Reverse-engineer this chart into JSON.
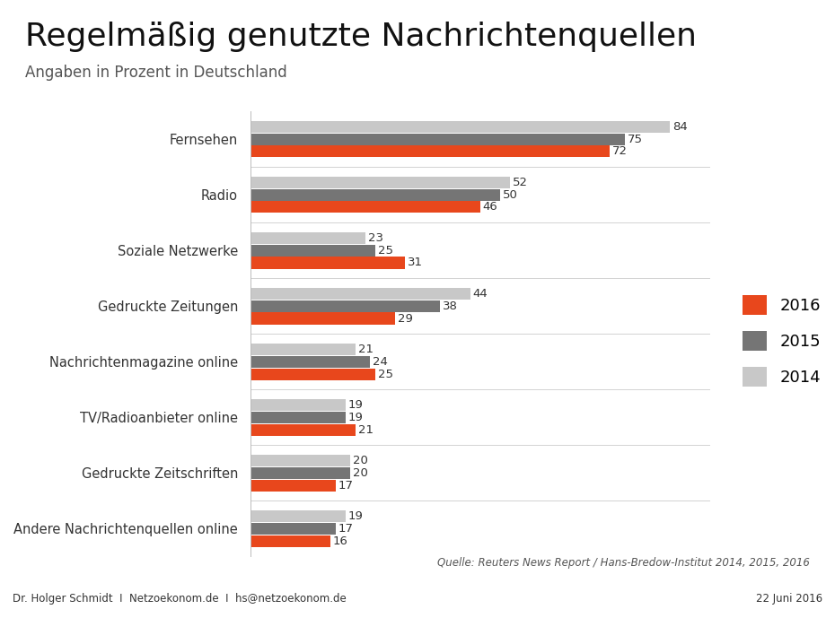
{
  "title": "Regelmäßig genutzte Nachrichtenquellen",
  "subtitle": "Angaben in Prozent in Deutschland",
  "categories": [
    "Fernsehen",
    "Radio",
    "Soziale Netzwerke",
    "Gedruckte Zeitungen",
    "Nachrichtenmagazine online",
    "TV/Radioanbieter online",
    "Gedruckte Zeitschriften",
    "Andere Nachrichtenquellen online"
  ],
  "data_2016": [
    72,
    46,
    31,
    29,
    25,
    21,
    17,
    16
  ],
  "data_2015": [
    75,
    50,
    25,
    38,
    24,
    19,
    20,
    17
  ],
  "data_2014": [
    84,
    52,
    23,
    44,
    21,
    19,
    20,
    19
  ],
  "color_2016": "#E8471C",
  "color_2015": "#757575",
  "color_2014": "#C8C8C8",
  "source_text": "Quelle: Reuters News Report / Hans-Bredow-Institut 2014, 2015, 2016",
  "footer_left": "Dr. Holger Schmidt  I  Netzoekonom.de  I  hs@netzoekonom.de",
  "footer_right": "22 Juni 2016",
  "bg_color": "#FFFFFF",
  "footer_bg_color": "#E0E0E0",
  "title_fontsize": 26,
  "subtitle_fontsize": 12,
  "bar_height": 0.21,
  "bar_gap": 0.015,
  "label_fontsize": 9.5,
  "category_fontsize": 10.5,
  "legend_fontsize": 13
}
